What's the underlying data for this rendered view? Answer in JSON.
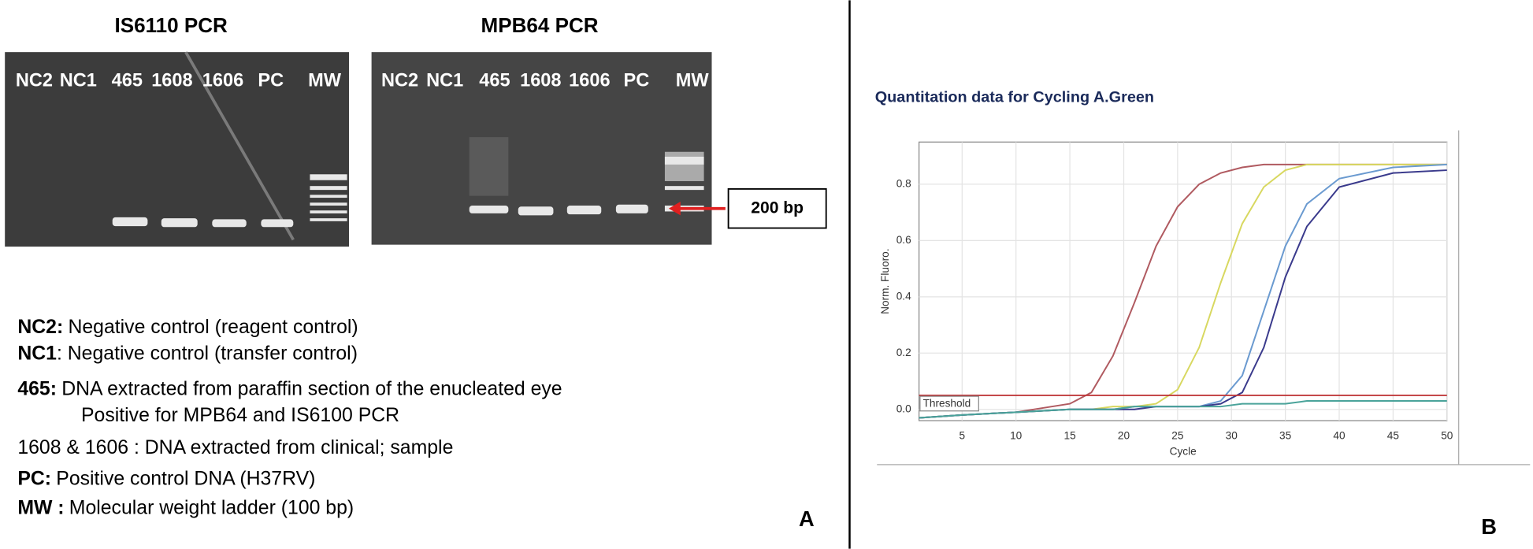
{
  "panel_a": {
    "gels": [
      {
        "title": "IS6110 PCR",
        "lanes": [
          "NC2",
          "NC1",
          "465",
          "1608",
          "1606",
          "PC",
          "MW"
        ]
      },
      {
        "title": "MPB64 PCR",
        "lanes": [
          "NC2",
          "NC1",
          "465",
          "1608",
          "1606",
          "PC",
          "MW"
        ]
      }
    ],
    "marker_label": "200 bp",
    "legend": [
      {
        "term": "NC2:",
        "text": "Negative control (reagent control)"
      },
      {
        "term": "NC1",
        "text": ": Negative control (transfer control)"
      },
      {
        "term": "465:",
        "text": "DNA extracted from paraffin section of the enucleated eye"
      },
      {
        "term": null,
        "text": "Positive for MPB64 and IS6100 PCR"
      },
      {
        "term": null,
        "text": "1608 & 1606 :  DNA extracted from clinical; sample"
      },
      {
        "term": "PC:",
        "text": "Positive control DNA (H37RV)"
      },
      {
        "term": "MW :",
        "text": "Molecular weight ladder (100 bp)"
      }
    ],
    "panel_label": "A"
  },
  "panel_b": {
    "panel_label": "B"
  },
  "chart_data": {
    "type": "line",
    "title": "Quantitation data for Cycling A.Green",
    "x_label": "Cycle",
    "y_label": "Norm. Fluoro.",
    "x": [
      1,
      5,
      10,
      15,
      17,
      19,
      21,
      23,
      25,
      27,
      29,
      31,
      33,
      35,
      37,
      40,
      45,
      50
    ],
    "series": [
      {
        "name": null,
        "color": "#b05a60",
        "values": [
          -0.03,
          -0.02,
          -0.01,
          0.02,
          0.06,
          0.19,
          0.38,
          0.58,
          0.72,
          0.8,
          0.84,
          0.86,
          0.87,
          0.87,
          0.87,
          0.87,
          0.87,
          0.87
        ]
      },
      {
        "name": null,
        "color": "#d8d860",
        "values": [
          -0.03,
          -0.02,
          -0.01,
          0,
          0,
          0.01,
          0.01,
          0.02,
          0.07,
          0.22,
          0.45,
          0.66,
          0.79,
          0.85,
          0.87,
          0.87,
          0.87,
          0.87
        ]
      },
      {
        "name": null,
        "color": "#6a9ad0",
        "values": [
          -0.03,
          -0.02,
          -0.01,
          0,
          0,
          0,
          0.01,
          0.01,
          0.01,
          0.01,
          0.03,
          0.12,
          0.35,
          0.58,
          0.73,
          0.82,
          0.86,
          0.87
        ]
      },
      {
        "name": null,
        "color": "#3a3a8c",
        "values": [
          -0.03,
          -0.02,
          -0.01,
          0,
          0,
          0,
          0,
          0.01,
          0.01,
          0.01,
          0.02,
          0.06,
          0.22,
          0.47,
          0.65,
          0.79,
          0.84,
          0.85
        ]
      },
      {
        "name": null,
        "color": "#4aa39a",
        "values": [
          -0.03,
          -0.02,
          -0.01,
          0,
          0,
          0,
          0.01,
          0.01,
          0.01,
          0.01,
          0.01,
          0.02,
          0.02,
          0.02,
          0.03,
          0.03,
          0.03,
          0.03
        ]
      }
    ],
    "threshold": {
      "label": "Threshold",
      "value": 0.05,
      "color": "#c0393b"
    },
    "xlim": [
      1,
      50
    ],
    "ylim": [
      -0.04,
      0.95
    ],
    "xticks": [
      5,
      10,
      15,
      20,
      25,
      30,
      35,
      40,
      45,
      50
    ],
    "yticks": [
      {
        "value": 0,
        "label": "0.0"
      },
      0.2,
      0.4,
      0.6,
      0.8
    ],
    "grid": true
  }
}
